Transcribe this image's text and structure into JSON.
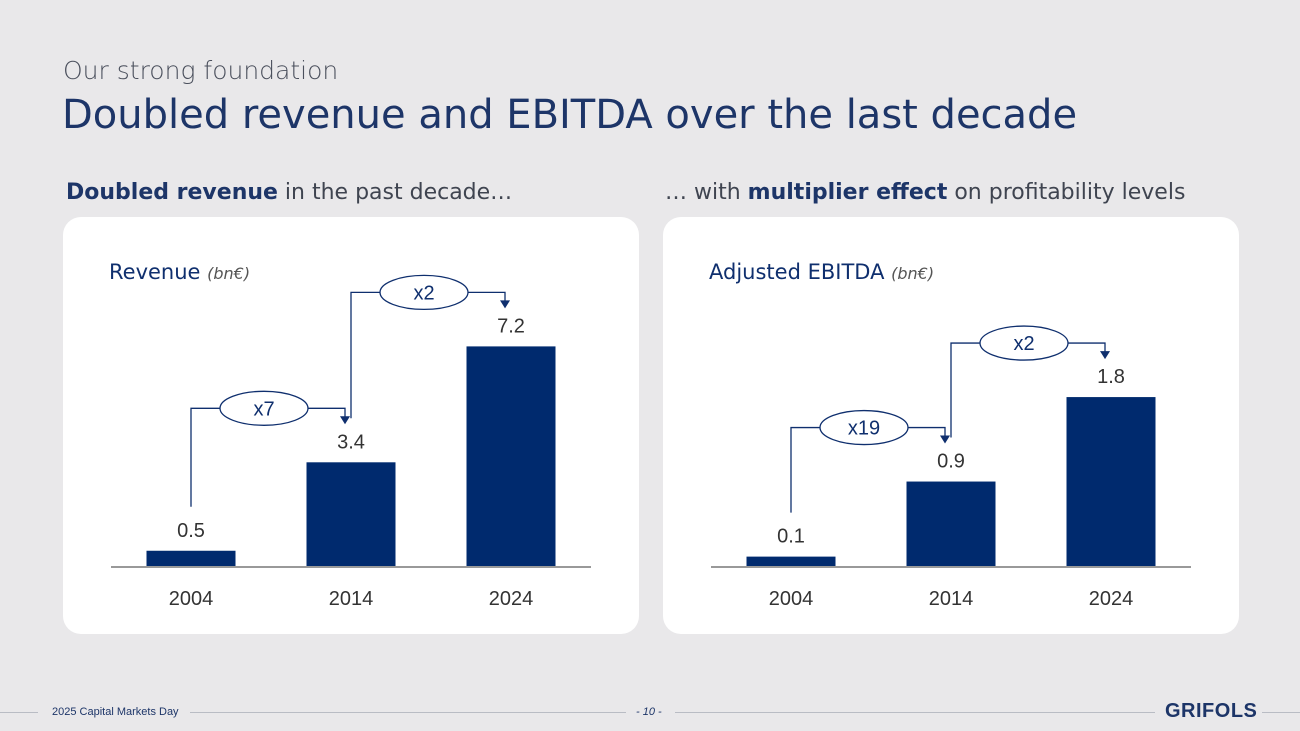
{
  "header": {
    "subtitle": "Our strong foundation",
    "title": "Doubled revenue and EBITDA over the last decade"
  },
  "lead_left": {
    "highlight": "Doubled revenue",
    "rest": " in the past decade…"
  },
  "lead_right": {
    "prefix": "… with ",
    "highlight": "multiplier effect",
    "rest": " on profitability levels"
  },
  "colors": {
    "bar": "#002a6e",
    "accent": "#0f2f6e",
    "background": "#e9e8ea"
  },
  "chart_data": [
    {
      "type": "bar",
      "title": "Revenue",
      "unit": "(bn€)",
      "categories": [
        "2004",
        "2014",
        "2024"
      ],
      "values": [
        0.5,
        3.4,
        7.2
      ],
      "value_labels": [
        "0.5",
        "3.4",
        "7.2"
      ],
      "ylim": [
        0,
        8
      ],
      "multipliers": [
        {
          "label": "x7",
          "from": "2004",
          "to": "2014"
        },
        {
          "label": "x2",
          "from": "2014",
          "to": "2024"
        }
      ]
    },
    {
      "type": "bar",
      "title": "Adjusted EBITDA",
      "unit": "(bn€)",
      "categories": [
        "2004",
        "2014",
        "2024"
      ],
      "values": [
        0.1,
        0.9,
        1.8
      ],
      "value_labels": [
        "0.1",
        "0.9",
        "1.8"
      ],
      "ylim": [
        0,
        2.6
      ],
      "multipliers": [
        {
          "label": "x19",
          "from": "2004",
          "to": "2014"
        },
        {
          "label": "x2",
          "from": "2014",
          "to": "2024"
        }
      ]
    }
  ],
  "footer": {
    "event": "2025 Capital Markets Day",
    "page": "- 10 -",
    "logo": "GRIFOLS"
  }
}
